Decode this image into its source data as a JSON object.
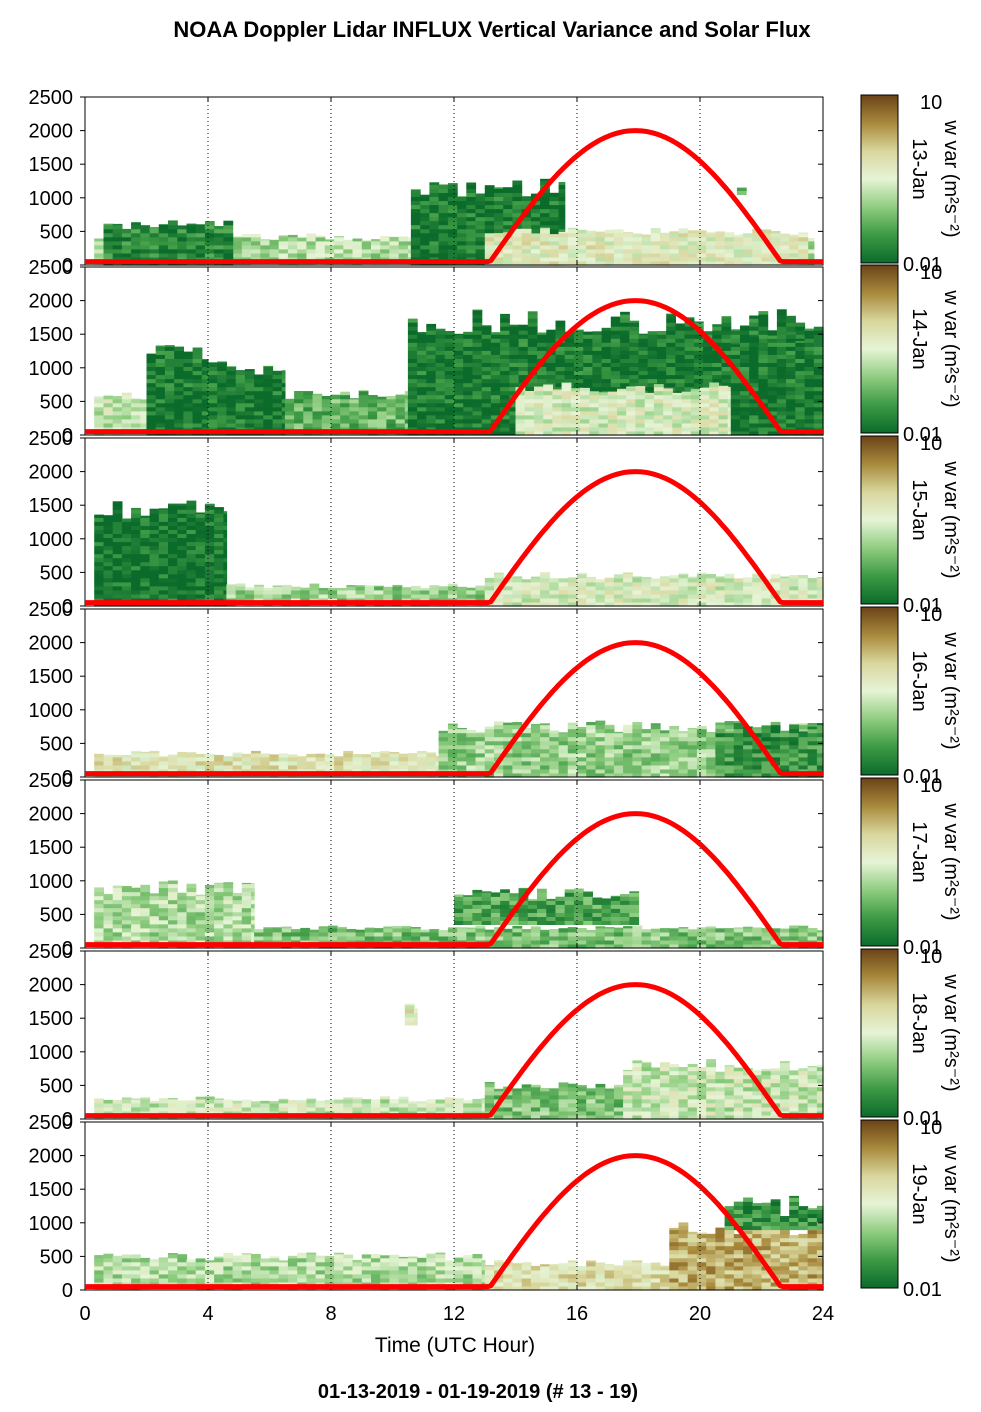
{
  "title": "NOAA Doppler Lidar INFLUX Vertical Variance and Solar Flux",
  "footer": "01-13-2019 - 01-19-2019   (# 13 - 19)",
  "colors": {
    "solar_curve": "#ff0000",
    "colormap": [
      "#0b6b2b",
      "#3d9a45",
      "#8fcd80",
      "#e6f4d6",
      "#d8d69c",
      "#a88a3c",
      "#6b4318"
    ]
  },
  "chart_data": {
    "type": "heatmap",
    "xlabel": "Time (UTC Hour)",
    "xlim": [
      0,
      24
    ],
    "xticks": [
      0,
      4,
      8,
      12,
      16,
      20,
      24
    ],
    "x_grid_dotted": [
      4,
      8,
      12,
      16,
      20
    ],
    "ylim": [
      0,
      2500
    ],
    "yticks": [
      0,
      500,
      1000,
      1500,
      2000,
      2500
    ],
    "colorbar": {
      "label": "w var (m²s⁻²)",
      "min_label": "0.01",
      "max_label": "10",
      "scale": "log"
    },
    "solar_flux": {
      "sunrise_hour": 13.1,
      "solar_noon_hour": 17.9,
      "sunset_hour": 22.7,
      "peak_display_height": 2000
    },
    "panels": [
      {
        "date": "13-Jan",
        "regions": [
          {
            "x": [
              0.3,
              23.7
            ],
            "top": 420,
            "level": 0.4
          },
          {
            "x": [
              0.6,
              4.8
            ],
            "top": 600,
            "level": 0.1
          },
          {
            "x": [
              10.6,
              15.6
            ],
            "top": 1150,
            "level": 0.05
          },
          {
            "x": [
              13.0,
              23.5
            ],
            "top": 500,
            "level": 0.55
          },
          {
            "x": [
              21.2,
              21.5
            ],
            "top": 1250,
            "bottom": 1050,
            "level": 0.3
          }
        ]
      },
      {
        "date": "14-Jan",
        "regions": [
          {
            "x": [
              0.3,
              3.0
            ],
            "top": 600,
            "level": 0.45
          },
          {
            "x": [
              2.0,
              4.0
            ],
            "top": 1200,
            "level": 0.05
          },
          {
            "x": [
              4.0,
              6.5
            ],
            "top": 1000,
            "level": 0.05
          },
          {
            "x": [
              6.5,
              10.5
            ],
            "top": 600,
            "level": 0.25
          },
          {
            "x": [
              10.5,
              24.0
            ],
            "top": 1700,
            "level": 0.05
          },
          {
            "x": [
              14.0,
              21.5
            ],
            "top": 700,
            "level": 0.5
          },
          {
            "x": [
              21.0,
              24.0
            ],
            "top": 1400,
            "level": 0.05
          }
        ]
      },
      {
        "date": "15-Jan",
        "regions": [
          {
            "x": [
              0.3,
              4.6
            ],
            "top": 1400,
            "level": 0.03
          },
          {
            "x": [
              4.6,
              24.0
            ],
            "top": 300,
            "level": 0.35
          },
          {
            "x": [
              13.0,
              24.0
            ],
            "top": 450,
            "level": 0.5
          }
        ]
      },
      {
        "date": "16-Jan",
        "regions": [
          {
            "x": [
              0.3,
              11.5
            ],
            "top": 350,
            "level": 0.58
          },
          {
            "x": [
              11.5,
              24.0
            ],
            "top": 750,
            "level": 0.35
          },
          {
            "x": [
              20.5,
              24.0
            ],
            "top": 750,
            "level": 0.15
          }
        ]
      },
      {
        "date": "17-Jan",
        "regions": [
          {
            "x": [
              0.3,
              5.5
            ],
            "top": 900,
            "level": 0.4
          },
          {
            "x": [
              5.5,
              24.0
            ],
            "top": 300,
            "level": 0.3
          },
          {
            "x": [
              12.0,
              18.0
            ],
            "top": 800,
            "bottom": 350,
            "level": 0.2
          }
        ]
      },
      {
        "date": "18-Jan",
        "regions": [
          {
            "x": [
              0.3,
              13.0
            ],
            "top": 300,
            "level": 0.45
          },
          {
            "x": [
              13.0,
              24.0
            ],
            "top": 500,
            "level": 0.3
          },
          {
            "x": [
              17.5,
              24.0
            ],
            "top": 800,
            "level": 0.45
          },
          {
            "x": [
              10.4,
              10.8
            ],
            "top": 1550,
            "bottom": 1400,
            "level": 0.55
          }
        ]
      },
      {
        "date": "19-Jan",
        "regions": [
          {
            "x": [
              0.3,
              13.0
            ],
            "top": 500,
            "level": 0.4
          },
          {
            "x": [
              13.0,
              24.0
            ],
            "top": 400,
            "level": 0.6
          },
          {
            "x": [
              19.0,
              24.0
            ],
            "top": 900,
            "level": 0.75
          },
          {
            "x": [
              20.8,
              24.0
            ],
            "top": 1250,
            "bottom": 900,
            "level": 0.15
          }
        ]
      }
    ]
  }
}
